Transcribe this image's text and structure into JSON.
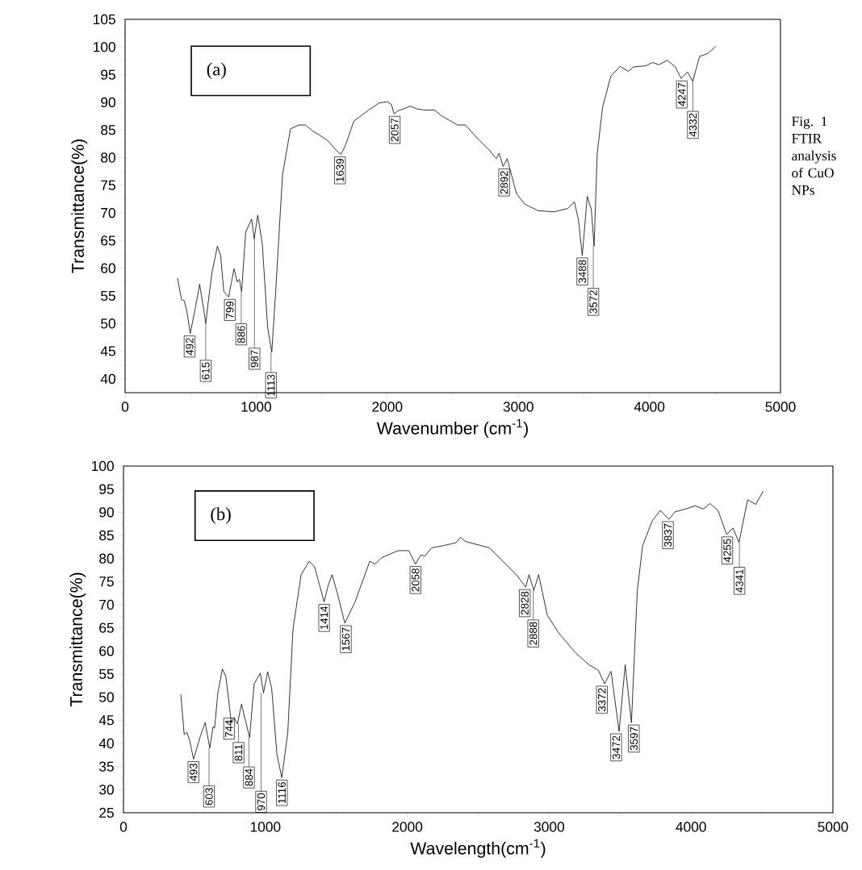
{
  "chart_data": [
    {
      "type": "line",
      "color": "#000000",
      "xlabel": "Wavenumber (cm$^{-1}$)",
      "ylabel": "Transmittance(%)",
      "xlim": [
        0,
        5000
      ],
      "xticks": [
        0,
        1000,
        2000,
        3000,
        4000,
        5000
      ],
      "ylim": [
        37.5,
        105
      ],
      "yticks": [
        40,
        45,
        50,
        55,
        60,
        65,
        70,
        75,
        80,
        85,
        90,
        95,
        100,
        105
      ],
      "x": [
        400,
        431,
        452,
        472,
        497,
        534,
        569,
        616,
        630,
        663,
        704,
        729,
        753,
        790,
        831,
        856,
        872,
        889,
        920,
        965,
        985,
        1012,
        1047,
        1088,
        1119,
        1149,
        1201,
        1262,
        1324,
        1375,
        1426,
        1488,
        1550,
        1611,
        1648,
        1683,
        1745,
        1858,
        1940,
        2001,
        2032,
        2052,
        2083,
        2124,
        2155,
        2176,
        2227,
        2288,
        2360,
        2412,
        2535,
        2596,
        2699,
        2781,
        2832,
        2853,
        2884,
        2915,
        2986,
        3048,
        3151,
        3274,
        3377,
        3428,
        3459,
        3488,
        3526,
        3557,
        3578,
        3602,
        3643,
        3705,
        3777,
        3838,
        3879,
        3972,
        4023,
        4074,
        4136,
        4198,
        4243,
        4290,
        4331,
        4383,
        4444,
        4506
      ],
      "values": [
        58.2,
        54.3,
        54.1,
        52.1,
        48.2,
        52.6,
        57.1,
        50.0,
        53.1,
        59.2,
        64.0,
        62.3,
        55.8,
        54.8,
        59.9,
        57.5,
        58.0,
        55.8,
        66.5,
        68.9,
        65.3,
        69.6,
        64.3,
        49.2,
        44.8,
        55.8,
        76.9,
        85.2,
        85.9,
        85.9,
        84.9,
        84.0,
        83.0,
        81.3,
        80.6,
        82.3,
        86.6,
        88.6,
        89.9,
        90.1,
        89.6,
        87.9,
        88.5,
        88.8,
        89.1,
        89.3,
        88.8,
        88.6,
        88.6,
        87.6,
        85.9,
        85.9,
        83.2,
        81.3,
        79.8,
        80.8,
        78.4,
        79.8,
        73.5,
        71.6,
        70.4,
        70.2,
        70.8,
        72.0,
        68.7,
        62.3,
        73.0,
        70.6,
        64.0,
        80.8,
        89.1,
        94.7,
        96.5,
        95.6,
        96.4,
        96.6,
        97.2,
        96.8,
        97.6,
        96.4,
        94.3,
        95.5,
        93.8,
        98.3,
        98.8,
        100.1
      ],
      "annotations": [
        "(a)",
        "Fig. 1 FTIR analysis of CuO NPs",
        {
          "text": "492",
          "x": 492,
          "y": 48.2
        },
        {
          "text": "615",
          "x": 615,
          "y": 50.0
        },
        {
          "text": "799",
          "x": 799,
          "y": 54.8
        },
        {
          "text": "886",
          "x": 886,
          "y": 55.8
        },
        {
          "text": "987",
          "x": 987,
          "y": 65.3
        },
        {
          "text": "1113",
          "x": 1113,
          "y": 44.8
        },
        {
          "text": "1639",
          "x": 1639,
          "y": 80.6
        },
        {
          "text": "2057",
          "x": 2057,
          "y": 87.9
        },
        {
          "text": "2892",
          "x": 2892,
          "y": 78.4
        },
        {
          "text": "3488",
          "x": 3488,
          "y": 62.3
        },
        {
          "text": "3572",
          "x": 3572,
          "y": 64.0
        },
        {
          "text": "4247",
          "x": 4247,
          "y": 94.3
        },
        {
          "text": "4332",
          "x": 4332,
          "y": 93.8
        }
      ]
    },
    {
      "type": "line",
      "color": "#000000",
      "xlabel": "Wavelength(cm$^{-1}$)",
      "ylabel": "Transmittance(%)",
      "xlim": [
        0,
        5000
      ],
      "xticks": [
        0,
        1000,
        2000,
        3000,
        4000,
        5000
      ],
      "ylim": [
        25,
        100
      ],
      "yticks": [
        25,
        30,
        35,
        40,
        45,
        50,
        55,
        60,
        65,
        70,
        75,
        80,
        85,
        90,
        95,
        100
      ],
      "x": [
        404,
        428,
        447,
        466,
        494,
        542,
        576,
        608,
        631,
        642,
        665,
        697,
        722,
        760,
        779,
        803,
        832,
        854,
        889,
        921,
        964,
        987,
        1016,
        1044,
        1082,
        1116,
        1158,
        1195,
        1252,
        1309,
        1347,
        1414,
        1442,
        1470,
        1508,
        1560,
        1632,
        1736,
        1774,
        1821,
        1935,
        2011,
        2058,
        2096,
        2124,
        2172,
        2257,
        2342,
        2374,
        2409,
        2579,
        2693,
        2769,
        2835,
        2858,
        2892,
        2926,
        2987,
        3072,
        3186,
        3281,
        3347,
        3391,
        3436,
        3493,
        3536,
        3580,
        3621,
        3659,
        3726,
        3783,
        3845,
        3887,
        3962,
        4029,
        4086,
        4133,
        4190,
        4251,
        4295,
        4338,
        4399,
        4456,
        4509
      ],
      "values": [
        50.6,
        41.9,
        42.4,
        40.7,
        36.6,
        41.6,
        44.5,
        39.0,
        43.6,
        43.3,
        50.9,
        56.1,
        54.4,
        44.5,
        45.6,
        44.2,
        48.5,
        45.6,
        41.3,
        52.9,
        55.2,
        50.9,
        55.5,
        52.0,
        37.5,
        32.6,
        42.4,
        64.8,
        76.5,
        79.4,
        78.2,
        70.6,
        74.1,
        76.5,
        72.4,
        66.0,
        70.6,
        79.4,
        78.8,
        80.2,
        81.7,
        81.7,
        78.8,
        80.8,
        80.5,
        82.3,
        82.8,
        83.4,
        84.6,
        83.7,
        82.3,
        78.8,
        76.5,
        73.8,
        76.5,
        73.1,
        76.5,
        67.7,
        63.7,
        59.6,
        57.0,
        55.8,
        52.9,
        55.6,
        42.6,
        57.0,
        44.5,
        73.0,
        82.8,
        88.1,
        90.4,
        88.5,
        90.1,
        90.7,
        91.4,
        90.7,
        91.9,
        90.4,
        85.2,
        86.6,
        83.5,
        92.7,
        91.7,
        94.6
      ],
      "annotations": [
        "(b)",
        {
          "text": "493",
          "x": 493,
          "y": 36.6
        },
        {
          "text": "603",
          "x": 603,
          "y": 39.0
        },
        {
          "text": "744",
          "x": 744,
          "y": 46.0
        },
        {
          "text": "811",
          "x": 811,
          "y": 44.2
        },
        {
          "text": "884",
          "x": 884,
          "y": 41.3
        },
        {
          "text": "970",
          "x": 970,
          "y": 50.9
        },
        {
          "text": "1116",
          "x": 1116,
          "y": 32.6
        },
        {
          "text": "1414",
          "x": 1414,
          "y": 70.6
        },
        {
          "text": "1567",
          "x": 1567,
          "y": 66.0
        },
        {
          "text": "2058",
          "x": 2058,
          "y": 78.8
        },
        {
          "text": "2828",
          "x": 2828,
          "y": 73.8
        },
        {
          "text": "2888",
          "x": 2888,
          "y": 73.1
        },
        {
          "text": "3372",
          "x": 3372,
          "y": 52.9
        },
        {
          "text": "3472",
          "x": 3472,
          "y": 42.6
        },
        {
          "text": "3597",
          "x": 3597,
          "y": 44.5
        },
        {
          "text": "3837",
          "x": 3837,
          "y": 88.5
        },
        {
          "text": "4255",
          "x": 4255,
          "y": 85.2
        },
        {
          "text": "4341",
          "x": 4341,
          "y": 83.5
        }
      ]
    }
  ]
}
